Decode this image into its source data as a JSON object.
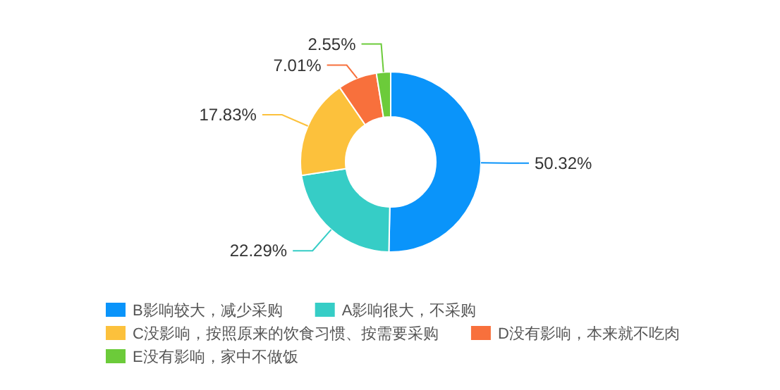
{
  "chart_data": {
    "type": "donut",
    "categories": [
      "B影响较大，减少采购",
      "A影响很大，不采购",
      "C没影响，按照原来的饮食习惯、按需要采购",
      "D没有影响，本来就不吃肉",
      "E没有影响，家中不做饭"
    ],
    "values": [
      50.32,
      22.29,
      17.83,
      7.01,
      2.55
    ],
    "value_labels": [
      "50.32%",
      "22.29%",
      "17.83%",
      "7.01%",
      "2.55%"
    ],
    "colors": [
      "#0a94fa",
      "#36cdc6",
      "#fcc13c",
      "#f8703c",
      "#6ccb3a"
    ],
    "legend": "bottom left"
  }
}
